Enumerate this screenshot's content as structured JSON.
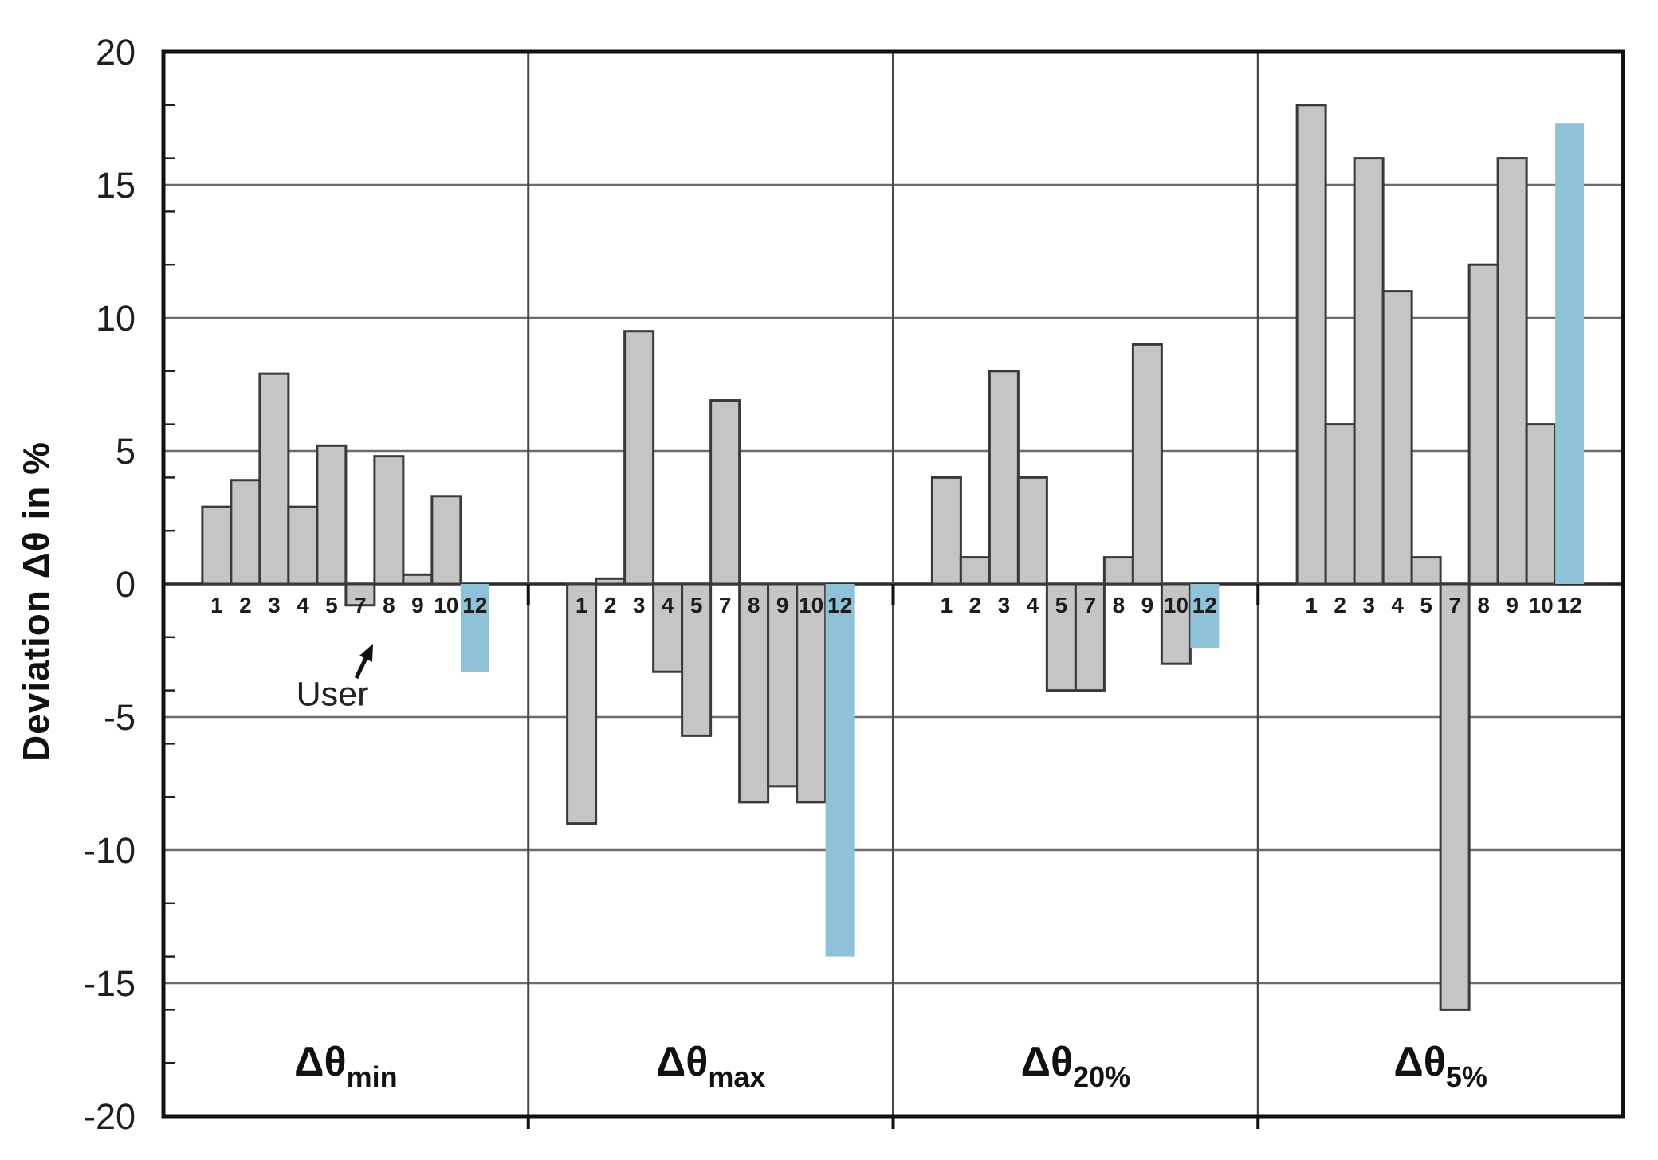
{
  "figure": {
    "y_axis_title": "Deviation Δθ in %",
    "annotation_user": "User"
  },
  "colors": {
    "background": "#ffffff",
    "bar_fill": "#c5c5c5",
    "bar_stroke": "#3a3a3a",
    "user_bar_fill": "#8fc2d8",
    "gridline": "#6b6b6b",
    "zero_line": "#2a2a2a",
    "panel_divider": "#4a4a4a",
    "border": "#111111",
    "tick": "#222222"
  },
  "chart_data": {
    "type": "bar",
    "title": "",
    "xlabel": "",
    "ylabel": "Deviation Δθ in %",
    "ylim": [
      -20,
      20
    ],
    "y_major_unit": 5,
    "y_minor_unit": 2,
    "grid": "horizontal-major",
    "legend": "none",
    "categories": [
      "1",
      "2",
      "3",
      "4",
      "5",
      "7",
      "8",
      "9",
      "10",
      "12"
    ],
    "highlight_category": "12",
    "highlight_annotation": "User",
    "groups": [
      {
        "label_main": "Δθ",
        "label_sub": "min",
        "values": [
          2.9,
          3.9,
          7.9,
          2.9,
          5.2,
          -0.8,
          4.8,
          0.35,
          3.3,
          -3.3
        ]
      },
      {
        "label_main": "Δθ",
        "label_sub": "max",
        "values": [
          -9.0,
          0.2,
          9.5,
          -3.3,
          -5.7,
          6.9,
          -8.2,
          -7.6,
          -8.2,
          -14.0
        ]
      },
      {
        "label_main": "Δθ",
        "label_sub": "20%",
        "values": [
          4.0,
          1.0,
          8.0,
          4.0,
          -4.0,
          -4.0,
          1.0,
          9.0,
          -3.0,
          -2.4
        ]
      },
      {
        "label_main": "Δθ",
        "label_sub": "5%",
        "values": [
          18.0,
          6.0,
          16.0,
          11.0,
          1.0,
          -16.0,
          12.0,
          16.0,
          6.0,
          17.3
        ]
      }
    ]
  }
}
